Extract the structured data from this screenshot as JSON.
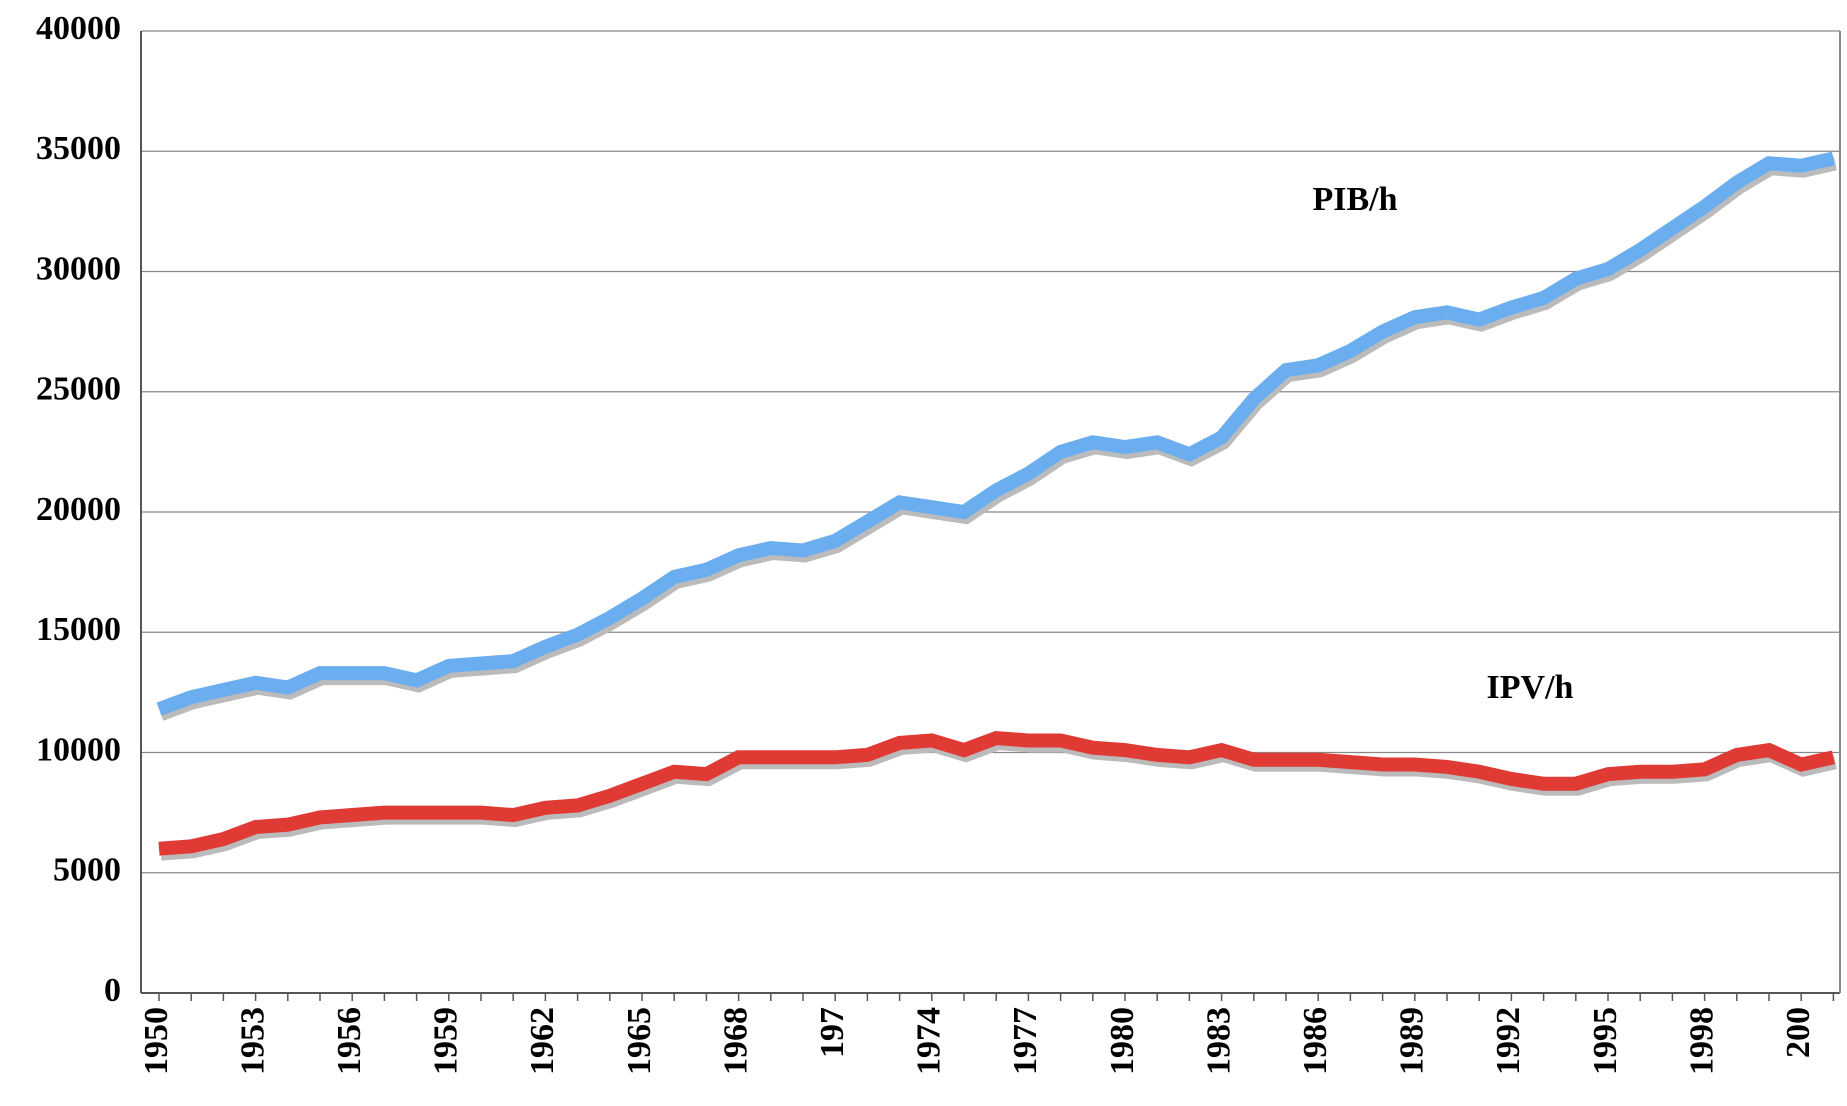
{
  "chart_data": {
    "type": "line",
    "categories": [
      "1950",
      null,
      null,
      "1953",
      null,
      null,
      "1956",
      null,
      null,
      "1959",
      null,
      null,
      "1962",
      null,
      null,
      "1965",
      null,
      null,
      "1968",
      null,
      null,
      "197",
      null,
      null,
      "1974",
      null,
      null,
      "1977",
      null,
      null,
      "1980",
      null,
      null,
      "1983",
      null,
      null,
      "1986",
      null,
      null,
      "1989",
      null,
      null,
      "1992",
      null,
      null,
      "1995",
      null,
      null,
      "1998",
      null,
      null,
      "200",
      null
    ],
    "series": [
      {
        "name": "PIB/h",
        "color": "#6aaef0",
        "values": [
          11800,
          12300,
          12600,
          12900,
          12700,
          13300,
          13300,
          13300,
          13000,
          13600,
          13700,
          13800,
          14400,
          14900,
          15600,
          16400,
          17300,
          17600,
          18200,
          18500,
          18400,
          18800,
          19600,
          20400,
          20200,
          20000,
          20900,
          21600,
          22500,
          22900,
          22700,
          22900,
          22400,
          23100,
          24700,
          25900,
          26100,
          26700,
          27500,
          28100,
          28300,
          28000,
          28500,
          28900,
          29700,
          30100,
          30900,
          31800,
          32700,
          33700,
          34500,
          34400,
          34700
        ]
      },
      {
        "name": "IPV/h",
        "color": "#e03a35",
        "values": [
          6000,
          6100,
          6400,
          6900,
          7000,
          7300,
          7400,
          7500,
          7500,
          7500,
          7500,
          7400,
          7700,
          7800,
          8200,
          8700,
          9200,
          9100,
          9800,
          9800,
          9800,
          9800,
          9900,
          10400,
          10500,
          10100,
          10600,
          10500,
          10500,
          10200,
          10100,
          9900,
          9800,
          10100,
          9700,
          9700,
          9700,
          9600,
          9500,
          9500,
          9400,
          9200,
          8900,
          8700,
          8700,
          9100,
          9200,
          9200,
          9300,
          9900,
          10100,
          9500,
          9800
        ]
      }
    ],
    "ylim": [
      0,
      40000
    ],
    "yticks": [
      0,
      5000,
      10000,
      15000,
      20000,
      25000,
      30000,
      35000,
      40000
    ],
    "grid": true
  }
}
